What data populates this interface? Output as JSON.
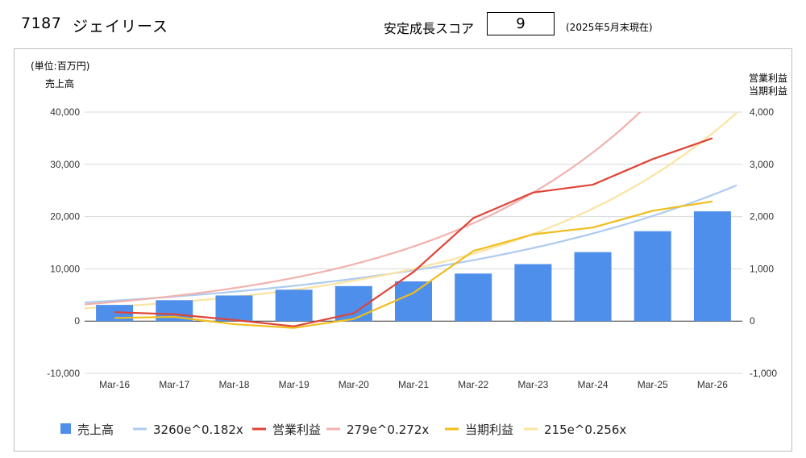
{
  "header": {
    "ticker": "7187",
    "company": "ジェイリース",
    "score_label": "安定成長スコア",
    "score_value": "9",
    "as_of": "(2025年5月末現在)"
  },
  "chart_data": {
    "type": "bar+line",
    "unit_label": "(単位:百万円)",
    "left_axis_title": "売上高",
    "right_axis_title_1": "営業利益",
    "right_axis_title_2": "当期利益",
    "categories": [
      "Mar-16",
      "Mar-17",
      "Mar-18",
      "Mar-19",
      "Mar-20",
      "Mar-21",
      "Mar-22",
      "Mar-23",
      "Mar-24",
      "Mar-25",
      "Mar-26"
    ],
    "left_ticks": [
      "40,000",
      "30,000",
      "20,000",
      "10,000",
      "0",
      "-10,000"
    ],
    "right_ticks": [
      "4,000",
      "3,000",
      "2,000",
      "1,000",
      "0",
      "-1,000"
    ],
    "ylim_left": [
      -10000,
      40000
    ],
    "ylim_right": [
      -1000,
      4000
    ],
    "grid": true,
    "legend_position": "bottom",
    "series": [
      {
        "name": "売上高",
        "kind": "bar",
        "axis": "left",
        "color": "#4f8fec",
        "values": [
          3100,
          4000,
          4900,
          6000,
          6700,
          7600,
          9100,
          10900,
          13200,
          17200,
          21000
        ]
      },
      {
        "name": "3260e^0.182x",
        "kind": "trend",
        "axis": "left",
        "color": "#aecbf0",
        "a": 3260,
        "b": 0.182
      },
      {
        "name": "営業利益",
        "kind": "line",
        "axis": "right",
        "color": "#df4438",
        "values": [
          170,
          130,
          20,
          -100,
          150,
          940,
          1970,
          2460,
          2610,
          3100,
          3500
        ]
      },
      {
        "name": "279e^0.272x",
        "kind": "trend",
        "axis": "right",
        "color": "#f1b2ad",
        "a": 279,
        "b": 0.272
      },
      {
        "name": "当期利益",
        "kind": "line",
        "axis": "right",
        "color": "#f0bd1b",
        "values": [
          60,
          80,
          -60,
          -130,
          40,
          540,
          1340,
          1660,
          1790,
          2110,
          2290
        ]
      },
      {
        "name": "215e^0.256x",
        "kind": "trend",
        "axis": "right",
        "color": "#fbe3a0",
        "a": 215,
        "b": 0.256
      }
    ]
  }
}
